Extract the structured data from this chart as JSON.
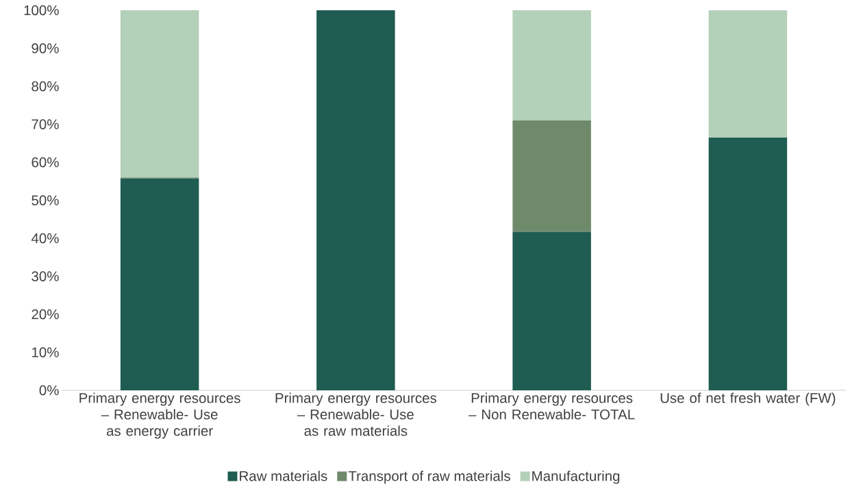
{
  "chart_data": {
    "type": "bar",
    "stacked": true,
    "categories": [
      "Primary energy resources – Renewable- Use as energy carrier",
      "Primary energy resources – Renewable- Use as raw materials",
      "Primary energy resources – Non Renewable- TOTAL",
      "Use of net fresh water (FW)"
    ],
    "series": [
      {
        "name": "Raw materials",
        "color": "#1f5c52",
        "values": [
          55.7,
          100,
          41.7,
          66.5
        ]
      },
      {
        "name": "Transport of raw materials",
        "color": "#6e8a6a",
        "values": [
          0.3,
          0,
          29.3,
          0
        ]
      },
      {
        "name": "Manufacturing",
        "color": "#b3d0b8",
        "values": [
          44.0,
          0,
          29.0,
          33.5
        ]
      }
    ],
    "ylim": [
      0,
      100
    ],
    "yticks": [
      {
        "value": 0,
        "label": "0%"
      },
      {
        "value": 10,
        "label": "10%"
      },
      {
        "value": 20,
        "label": "20%"
      },
      {
        "value": 30,
        "label": "30%"
      },
      {
        "value": 40,
        "label": "40%"
      },
      {
        "value": 50,
        "label": "50%"
      },
      {
        "value": 60,
        "label": "60%"
      },
      {
        "value": 70,
        "label": "70%"
      },
      {
        "value": 80,
        "label": "80%"
      },
      {
        "value": 90,
        "label": "90%"
      },
      {
        "value": 100,
        "label": "100%"
      }
    ],
    "grid": false,
    "legend": "bottom"
  }
}
